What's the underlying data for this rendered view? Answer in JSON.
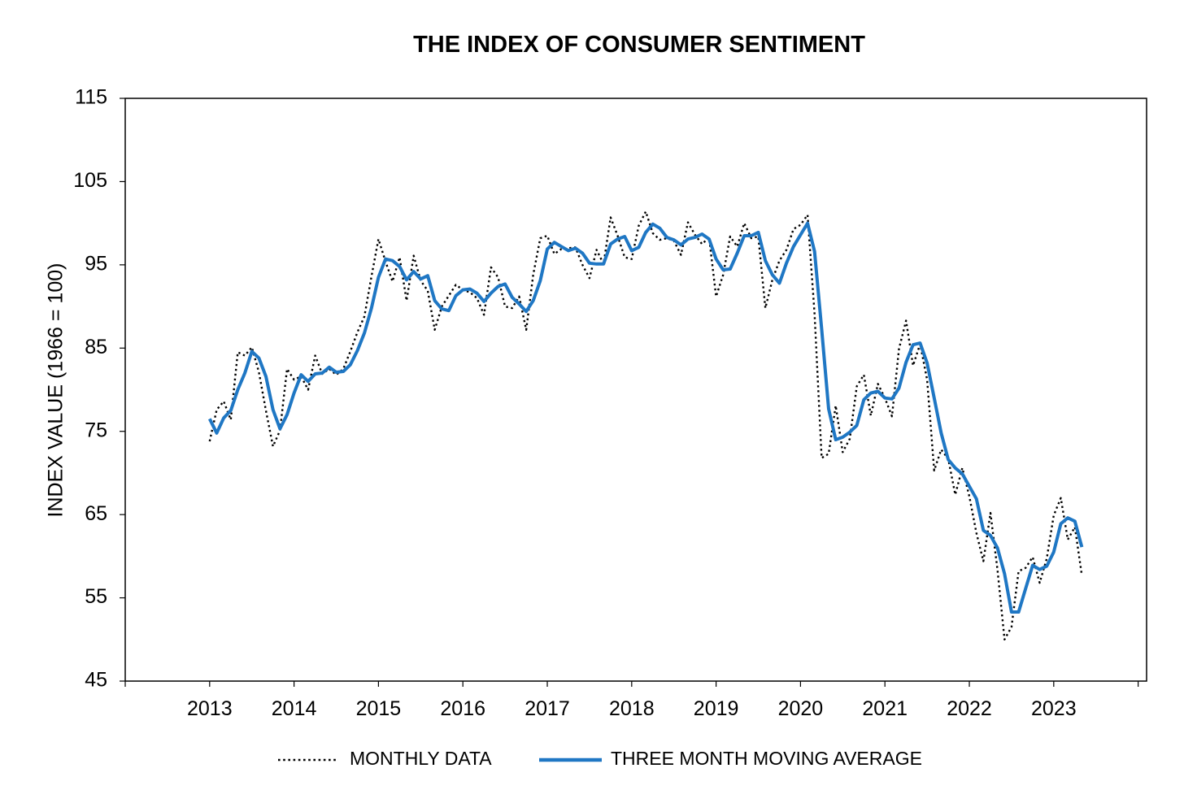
{
  "chart_data": {
    "type": "line",
    "title": "THE INDEX OF CONSUMER SENTIMENT",
    "xlabel": "",
    "ylabel": "INDEX VALUE (1966 = 100)",
    "ylim": [
      45,
      115
    ],
    "yticks": [
      "45",
      "55",
      "65",
      "75",
      "85",
      "95",
      "105",
      "115"
    ],
    "xticks": [
      "2013",
      "2014",
      "2015",
      "2016",
      "2017",
      "2018",
      "2019",
      "2020",
      "2021",
      "2022",
      "2023"
    ],
    "xlim": [
      2012,
      2024.1
    ],
    "grid": false,
    "legend_position": "bottom",
    "series": [
      {
        "name": "MONTHLY DATA",
        "color": "#000000",
        "style": "dotted",
        "x_start": 2013.0,
        "x_step_months": 1,
        "values": [
          73.8,
          77.6,
          78.6,
          76.4,
          84.5,
          84.1,
          85.1,
          82.1,
          77.5,
          73.2,
          75.1,
          82.5,
          81.2,
          81.6,
          80.0,
          84.1,
          81.9,
          82.5,
          81.8,
          82.5,
          84.6,
          86.9,
          88.8,
          93.6,
          98.1,
          95.4,
          93.0,
          95.9,
          90.7,
          96.1,
          93.1,
          91.9,
          87.2,
          90.0,
          91.3,
          92.6,
          92.0,
          91.7,
          91.0,
          89.0,
          94.7,
          93.5,
          90.0,
          89.8,
          91.2,
          87.2,
          93.8,
          98.2,
          98.5,
          96.3,
          96.9,
          97.0,
          97.1,
          95.0,
          93.4,
          96.8,
          95.1,
          100.7,
          98.5,
          95.9,
          95.7,
          99.7,
          101.4,
          98.8,
          98.0,
          98.2,
          97.9,
          96.2,
          100.1,
          98.6,
          97.5,
          98.3,
          91.2,
          93.8,
          98.4,
          97.2,
          100.0,
          98.2,
          98.4,
          89.8,
          93.2,
          95.5,
          96.8,
          99.3,
          99.8,
          101.0,
          89.1,
          71.8,
          72.3,
          78.1,
          72.5,
          74.1,
          80.4,
          81.8,
          76.9,
          80.7,
          79.0,
          76.8,
          84.9,
          88.3,
          82.9,
          85.5,
          81.2,
          70.3,
          72.8,
          71.7,
          67.4,
          70.6,
          67.2,
          62.8,
          59.4,
          65.2,
          58.4,
          50.0,
          51.5,
          58.2,
          58.6,
          59.9,
          56.8,
          59.7,
          64.9,
          67.0,
          62.0,
          63.5,
          57.7
        ]
      },
      {
        "name": "THREE MONTH MOVING AVERAGE",
        "color": "#1f77c4",
        "style": "solid",
        "x_start": 2013.0,
        "x_step_months": 1,
        "values": [
          76.5,
          74.8,
          76.6,
          77.5,
          80.0,
          82.0,
          84.6,
          83.8,
          81.6,
          77.6,
          75.3,
          77.0,
          79.6,
          81.8,
          81.0,
          81.9,
          82.0,
          82.7,
          82.1,
          82.2,
          83.0,
          84.7,
          86.8,
          89.8,
          93.5,
          95.7,
          95.5,
          94.8,
          93.2,
          94.2,
          93.3,
          93.7,
          90.7,
          89.7,
          89.5,
          91.3,
          92.0,
          92.1,
          91.6,
          90.6,
          91.6,
          92.4,
          92.7,
          91.1,
          90.3,
          89.4,
          90.7,
          93.1,
          96.9,
          97.7,
          97.2,
          96.7,
          97.0,
          96.4,
          95.2,
          95.1,
          95.1,
          97.5,
          98.1,
          98.4,
          96.7,
          97.1,
          98.9,
          99.9,
          99.4,
          98.3,
          98.0,
          97.4,
          98.1,
          98.3,
          98.7,
          98.1,
          95.7,
          94.4,
          94.5,
          96.4,
          98.5,
          98.5,
          98.9,
          95.5,
          93.8,
          92.8,
          95.2,
          97.2,
          98.6,
          100.0,
          96.6,
          87.3,
          77.7,
          74.0,
          74.3,
          74.9,
          75.7,
          78.8,
          79.6,
          79.8,
          79.0,
          78.9,
          80.2,
          83.3,
          85.4,
          85.6,
          83.2,
          79.0,
          74.8,
          71.6,
          70.6,
          69.9,
          68.4,
          66.9,
          63.1,
          62.5,
          61.0,
          57.9,
          53.3,
          53.3,
          56.1,
          58.9,
          58.4,
          58.8,
          60.5,
          63.9,
          64.6,
          64.2,
          61.1
        ]
      }
    ]
  }
}
